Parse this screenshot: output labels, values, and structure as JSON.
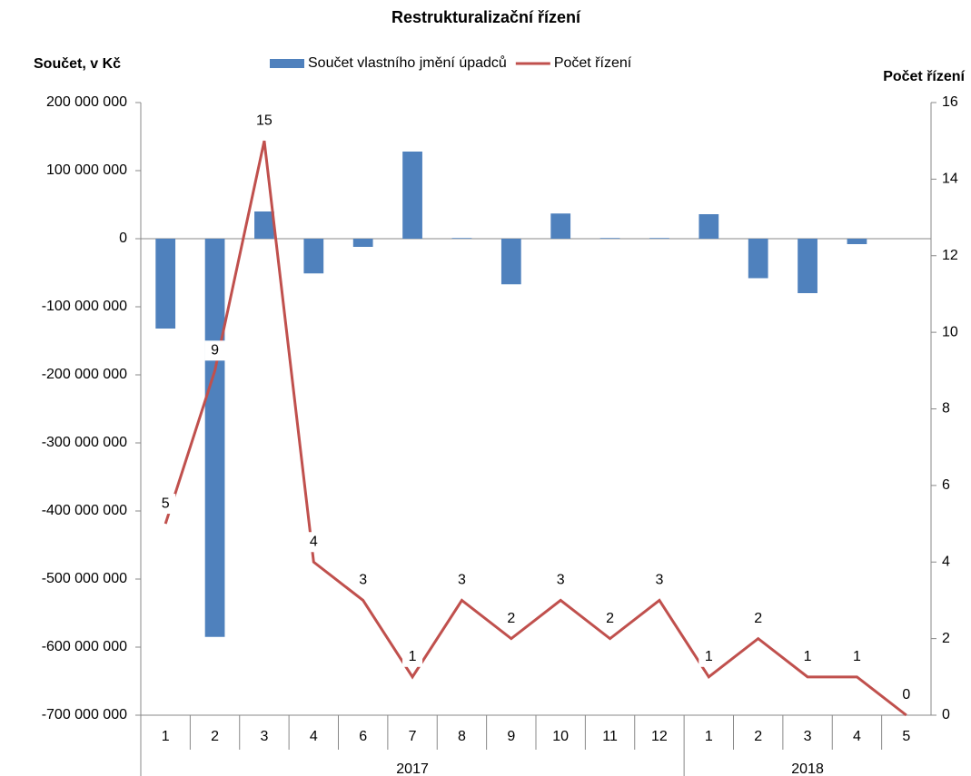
{
  "chart_data": {
    "type": "bar-line",
    "title": "Restrukturalizační řízení",
    "y_label": "Součet, v Kč",
    "y2_label": "Počet řízení",
    "category_groups": [
      {
        "name": "2017",
        "categories": [
          "1",
          "2",
          "3",
          "4",
          "6",
          "7",
          "8",
          "9",
          "10",
          "11",
          "12"
        ]
      },
      {
        "name": "2018",
        "categories": [
          "1",
          "2",
          "3",
          "4",
          "5"
        ]
      }
    ],
    "series": [
      {
        "name": "Součet vlastního jmění úpadců",
        "type": "bar",
        "color": "#4f81bd",
        "values": [
          -132000000,
          -585000000,
          40000000,
          -51000000,
          -12000000,
          128000000,
          1000000,
          -67000000,
          37000000,
          1000000,
          1000000,
          36000000,
          -58000000,
          -80000000,
          -8000000,
          0
        ]
      },
      {
        "name": "Počet řízení",
        "type": "line",
        "axis": "y2",
        "color": "#c0504d",
        "values": [
          5,
          9,
          15,
          4,
          3,
          1,
          3,
          2,
          3,
          2,
          3,
          1,
          2,
          1,
          1,
          0
        ]
      }
    ],
    "ylim": [
      -700000000,
      200000000
    ],
    "yticks": [
      {
        "value": -700000000,
        "label": "-700 000 000"
      },
      {
        "value": -600000000,
        "label": "-600 000 000"
      },
      {
        "value": -500000000,
        "label": "-500 000 000"
      },
      {
        "value": -400000000,
        "label": "-400 000 000"
      },
      {
        "value": -300000000,
        "label": "-300 000 000"
      },
      {
        "value": -200000000,
        "label": "-200 000 000"
      },
      {
        "value": -100000000,
        "label": "-100 000 000"
      },
      0,
      {
        "value": 100000000,
        "label": "100 000 000"
      },
      {
        "value": 200000000,
        "label": "200 000 000"
      }
    ],
    "y2lim": [
      0,
      16
    ],
    "y2ticks": [
      0,
      2,
      4,
      6,
      8,
      10,
      12,
      14,
      16
    ],
    "legend": "top",
    "grid": false
  }
}
